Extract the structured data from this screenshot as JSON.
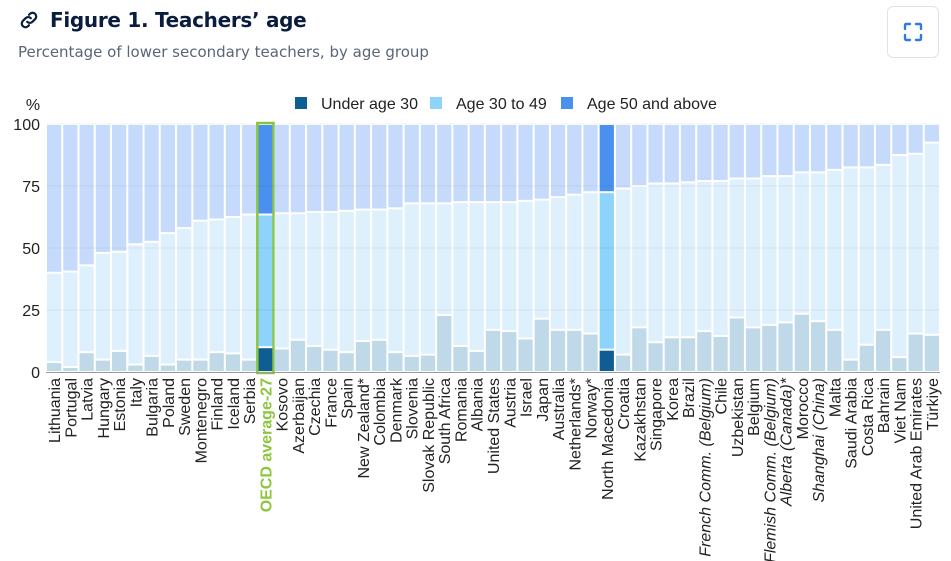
{
  "header": {
    "title": "Figure 1. Teachers’ age",
    "subtitle": "Percentage of lower secondary teachers, by age group",
    "link_icon": "link-icon",
    "expand_icon": "expand-icon"
  },
  "colors": {
    "under30": "#c0d9e8",
    "age30_49": "#dff0fd",
    "age50plus": "#c6dbfb",
    "hl_under30": "#0e5e94",
    "hl_age30_49": "#8dd3fb",
    "hl_age50plus": "#4a90ef",
    "oecd_outline": "#8cc63f",
    "oecd_label": "#8cc63f"
  },
  "chart_data": {
    "type": "bar",
    "stacked": true,
    "title": "Figure 1. Teachers’ age",
    "subtitle": "Percentage of lower secondary teachers, by age group",
    "ylabel": "%",
    "xlabel": "",
    "ylim": [
      0,
      100
    ],
    "yticks": [
      0,
      25,
      50,
      75,
      100
    ],
    "grid": true,
    "legend_position": "top",
    "categories": [
      "Lithuania",
      "Portugal",
      "Latvia",
      "Hungary",
      "Estonia",
      "Italy",
      "Bulgaria",
      "Poland",
      "Sweden",
      "Montenegro",
      "Finland",
      "Iceland",
      "Serbia",
      "OECD average-27",
      "Kosovo",
      "Azerbaijan",
      "Czechia",
      "France",
      "Spain",
      "New Zealand*",
      "Colombia",
      "Denmark",
      "Slovenia",
      "Slovak Republic",
      "South Africa",
      "Romania",
      "Albania",
      "United States",
      "Austria",
      "Israel",
      "Japan",
      "Australia",
      "Netherlands*",
      "Norway*",
      "North Macedonia",
      "Croatia",
      "Kazakhstan",
      "Singapore",
      "Korea",
      "Brazil",
      "French Comm. (Belgium)",
      "Chile",
      "Uzbekistan",
      "Belgium",
      "Flemish Comm. (Belgium)",
      "Alberta (Canada)*",
      "Morocco",
      "Shanghai (China)",
      "Malta",
      "Saudi Arabia",
      "Costa Rica",
      "Bahrain",
      "Viet Nam",
      "United Arab Emirates",
      "Türkiye"
    ],
    "italic_categories": [
      "French Comm. (Belgium)",
      "Flemish Comm. (Belgium)",
      "Alberta (Canada)*",
      "Shanghai (China)"
    ],
    "highlighted_categories": [
      "OECD average-27",
      "North Macedonia"
    ],
    "series": [
      {
        "name": "Under age 30",
        "values": [
          4,
          2,
          8,
          5,
          8.5,
          3,
          6.5,
          3,
          5,
          5,
          8,
          7.5,
          5,
          10,
          9.5,
          13,
          10.5,
          9,
          8,
          12.5,
          13,
          8,
          6.5,
          7,
          23,
          10.5,
          8.5,
          17,
          16.5,
          13.5,
          21.5,
          17,
          17,
          15.5,
          9,
          7,
          18,
          12,
          14,
          14,
          16.5,
          14.5,
          22,
          18,
          19,
          20,
          23.5,
          20.5,
          17,
          5,
          11,
          17,
          6,
          15.5,
          15
        ]
      },
      {
        "name": "Age 30 to 49",
        "values": [
          36,
          38.5,
          35,
          43,
          40,
          48.5,
          46,
          53,
          53,
          56,
          53.5,
          55,
          58.5,
          53.5,
          54.5,
          51,
          54,
          55.5,
          57,
          53,
          52.5,
          58,
          61.5,
          61,
          45,
          58,
          60,
          51.5,
          52,
          55.5,
          48,
          53.5,
          54.5,
          57,
          63.5,
          67,
          57,
          64,
          62,
          62.5,
          60.5,
          62.5,
          56,
          60,
          60,
          59,
          57,
          60,
          64.5,
          77.5,
          71.5,
          66.5,
          81.5,
          72.5,
          77.5
        ]
      },
      {
        "name": "Age 50 and above",
        "values": [
          60,
          59.5,
          57,
          52,
          51.5,
          48.5,
          47.5,
          44,
          42,
          39,
          38.5,
          37.5,
          36.5,
          36.5,
          36,
          36,
          35.5,
          35.5,
          35,
          34.5,
          34.5,
          34,
          32,
          32,
          32,
          31.5,
          31.5,
          31.5,
          31.5,
          31,
          30.5,
          29.5,
          28.5,
          27.5,
          27.5,
          26,
          25,
          24,
          24,
          23.5,
          23,
          23,
          22,
          22,
          21,
          21,
          19.5,
          19.5,
          18.5,
          17.5,
          17.5,
          16.5,
          12.5,
          12,
          7.5
        ]
      }
    ]
  }
}
